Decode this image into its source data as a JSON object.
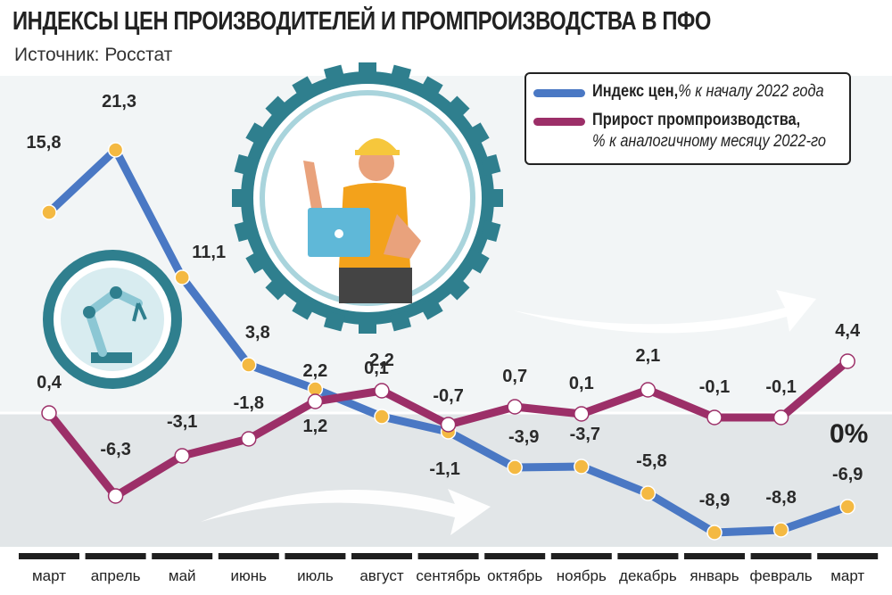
{
  "title": "ИНДЕКСЫ ЦЕН ПРОИЗВОДИТЕЛЕЙ И ПРОМПРОИЗВОДСТВА В ПФО",
  "subtitle": "Источник: Росстат",
  "zero_label": "0%",
  "legend": {
    "price": {
      "bold": "Индекс цен,",
      "italic": "% к началу 2022 года"
    },
    "prod": {
      "bold": "Прирост промпроизводства,",
      "italic": "% к аналогичному месяцу 2022-го"
    }
  },
  "colors": {
    "price_line": "#4a78c4",
    "price_marker": "#f4b942",
    "prod_line": "#9c2f68",
    "prod_marker": "#ffffff",
    "month_bar": "#1f1f1f",
    "illustration": "#2f7f8e"
  },
  "chart_data": {
    "type": "line",
    "categories": [
      "март",
      "апрель",
      "май",
      "июнь",
      "июль",
      "август",
      "сентябрь",
      "октябрь",
      "ноябрь",
      "декабрь",
      "январь",
      "февраль",
      "март"
    ],
    "series": [
      {
        "name": "Индекс цен, % к началу 2022 года",
        "values": [
          15.8,
          21.3,
          11.1,
          3.8,
          1.2,
          0.1,
          -1.1,
          -3.9,
          -3.7,
          -5.8,
          -8.9,
          -8.8,
          -6.9
        ],
        "labels": [
          "15,8",
          "21,3",
          "11,1",
          "3,8",
          "1,2",
          "0,1",
          "-1,1",
          "-3,9",
          "-3,7",
          "-5,8",
          "-8,9",
          "-8,8",
          "-6,9"
        ]
      },
      {
        "name": "Прирост промпроизводства, % к аналогичному месяцу 2022-го",
        "values": [
          0.4,
          -6.3,
          -3.1,
          -1.8,
          2.2,
          2.2,
          -0.7,
          0.7,
          0.1,
          2.1,
          -0.1,
          -0.1,
          4.4
        ],
        "labels": [
          "0,4",
          "-6,3",
          "-3,1",
          "-1,8",
          "2,2",
          "2,2",
          "-0,7",
          "0,7",
          "0,1",
          "2,1",
          "-0,1",
          "-0,1",
          "4,4"
        ]
      }
    ]
  }
}
